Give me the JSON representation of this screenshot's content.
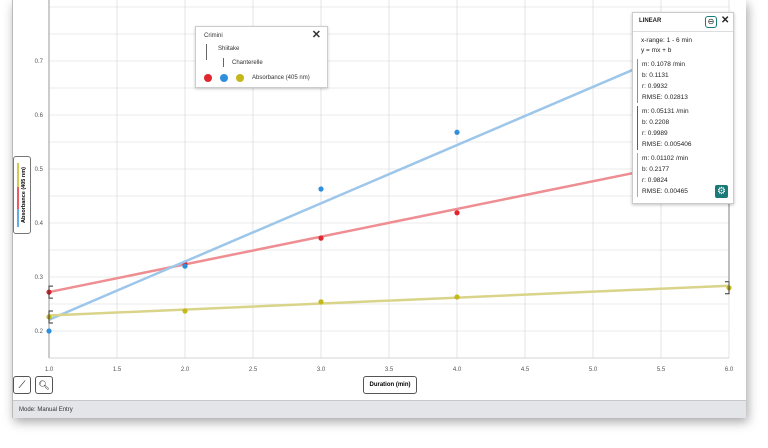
{
  "chart_data": {
    "type": "scatter",
    "xlabel": "Duration (min)",
    "ylabel": "Absorbance (405 nm)",
    "xlim": [
      1.0,
      6.0
    ],
    "ylim": [
      0.15,
      0.8
    ],
    "x_ticks": [
      "1.0",
      "1.5",
      "2.0",
      "2.5",
      "3.0",
      "3.5",
      "4.0",
      "4.5",
      "5.0",
      "5.5",
      "6.0"
    ],
    "y_ticks": [
      "0.2",
      "0.3",
      "0.4",
      "0.5",
      "0.6",
      "0.7"
    ],
    "grid": true,
    "series": [
      {
        "name": "Crimini",
        "color": "#e0262e",
        "fit_color": "#ef8e92",
        "x": [
          1,
          2,
          3,
          4,
          6
        ],
        "y": [
          0.272,
          0.324,
          0.372,
          0.419,
          0.531
        ],
        "fit": {
          "m": 0.05131,
          "b": 0.2208
        }
      },
      {
        "name": "Shiitake",
        "color": "#2f8fdc",
        "fit_color": "#9cc6ea",
        "x": [
          1,
          2,
          3,
          4,
          6
        ],
        "y": [
          0.2,
          0.32,
          0.463,
          0.568,
          0.735
        ],
        "fit": {
          "m": 0.1078,
          "b": 0.1131
        }
      },
      {
        "name": "Chanterelle",
        "color": "#c4b81c",
        "fit_color": "#d9d48a",
        "x": [
          1,
          2,
          3,
          4,
          6
        ],
        "y": [
          0.226,
          0.237,
          0.254,
          0.263,
          0.28
        ],
        "fit": {
          "m": 0.01102,
          "b": 0.2177
        }
      }
    ]
  },
  "legend": {
    "l1": "Crimini",
    "l2": "Shiitake",
    "l3": "Chanterelle",
    "measure": "Absorbance (405 nm)"
  },
  "fit_panel": {
    "title": "LINEAR",
    "range": "x-range: 1 - 6 min",
    "eq": "y = mx + b",
    "blocks": [
      {
        "color": "#5b9bd5",
        "m": "m: 0.1078 /min",
        "b": "b: 0.1131",
        "r": "r: 0.9932",
        "rmse": "RMSE: 0.02813"
      },
      {
        "color": "#e0262e",
        "m": "m: 0.05131 /min",
        "b": "b: 0.2208",
        "r": "r: 0.9989",
        "rmse": "RMSE: 0.005406"
      },
      {
        "color": "#c4b81c",
        "m": "m: 0.01102 /min",
        "b": "b: 0.2177",
        "r": "r: 0.9824",
        "rmse": "RMSE: 0.00465"
      }
    ]
  },
  "status": "Mode: Manual Entry"
}
